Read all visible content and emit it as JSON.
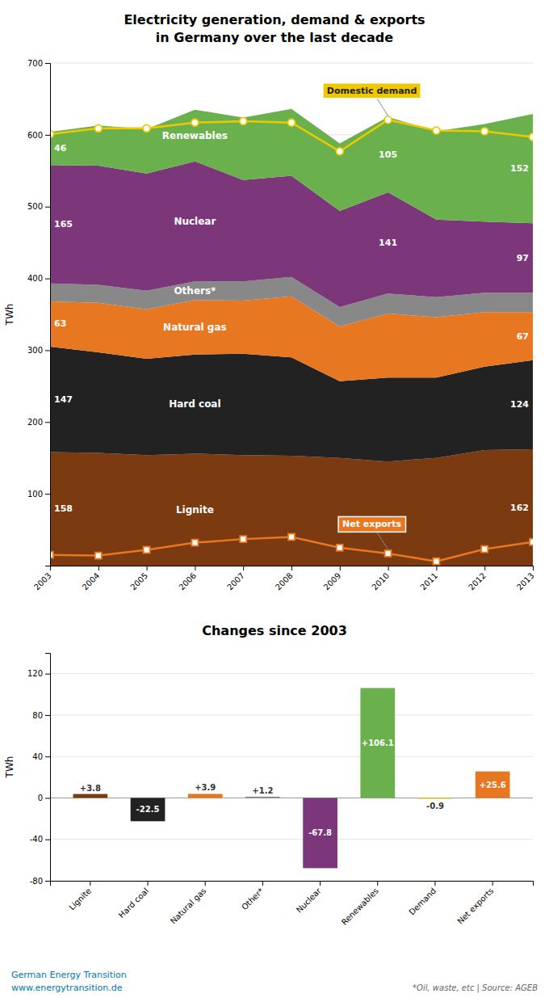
{
  "chart_data": [
    {
      "type": "area",
      "stacked": true,
      "title": "Electricity generation, demand & exports",
      "subtitle": "in Germany over the last decade",
      "y_label": "TWh",
      "x": [
        2003,
        2004,
        2005,
        2006,
        2007,
        2008,
        2009,
        2010,
        2011,
        2012,
        2013
      ],
      "xlim": [
        2003,
        2013
      ],
      "xticks": [
        2003,
        2004,
        2005,
        2006,
        2007,
        2008,
        2009,
        2010,
        2011,
        2012,
        2013
      ],
      "ylim": [
        0,
        700
      ],
      "yticks": [
        100,
        200,
        300,
        400,
        500,
        600,
        700
      ],
      "grid": true,
      "series": [
        {
          "name": "Lignite",
          "type": "area",
          "color": "#7B3A10",
          "values": [
            158,
            157,
            154,
            156,
            154,
            153,
            150,
            145,
            150,
            161,
            162
          ],
          "value_labels": [
            "158",
            null,
            null,
            null,
            null,
            null,
            null,
            null,
            null,
            null,
            "162"
          ]
        },
        {
          "name": "Hard coal",
          "type": "area",
          "color": "#222222",
          "values": [
            147,
            140,
            134,
            138,
            141,
            137,
            107,
            117,
            112,
            116,
            124
          ],
          "value_labels": [
            "147",
            null,
            null,
            null,
            null,
            null,
            null,
            null,
            null,
            null,
            "124"
          ]
        },
        {
          "name": "Natural gas",
          "type": "area",
          "color": "#E87722",
          "values": [
            63,
            69,
            69,
            76,
            74,
            85,
            76,
            89,
            84,
            76,
            67
          ],
          "value_labels": [
            "63",
            null,
            null,
            null,
            null,
            null,
            null,
            null,
            null,
            null,
            "67"
          ]
        },
        {
          "name": "Others*",
          "type": "area",
          "color": "#888888",
          "values": [
            25,
            25,
            26,
            26,
            27,
            27,
            27,
            28,
            28,
            27,
            27
          ]
        },
        {
          "name": "Nuclear",
          "type": "area",
          "color": "#7B3779",
          "values": [
            165,
            166,
            163,
            167,
            141,
            141,
            134,
            141,
            108,
            99,
            97
          ],
          "value_labels": [
            "165",
            null,
            null,
            null,
            null,
            null,
            null,
            "141",
            null,
            null,
            "97"
          ]
        },
        {
          "name": "Renewables",
          "type": "area",
          "color": "#6AB04C",
          "values": [
            46,
            56,
            62,
            72,
            87,
            93,
            94,
            105,
            123,
            136,
            152
          ],
          "value_labels": [
            "46",
            null,
            null,
            null,
            null,
            null,
            null,
            "105",
            null,
            null,
            "152"
          ]
        },
        {
          "name": "Domestic demand",
          "type": "line",
          "color": "#F0C800",
          "marker": "circle",
          "values": [
            601,
            609,
            609,
            617,
            619,
            617,
            577,
            621,
            606,
            605,
            597
          ]
        },
        {
          "name": "Net exports",
          "type": "line",
          "color": "#E87722",
          "marker": "square",
          "values": [
            15,
            14,
            22,
            32,
            37,
            40,
            25,
            17,
            6,
            23,
            33
          ]
        }
      ]
    },
    {
      "type": "bar",
      "title": "Changes since 2003",
      "y_label": "TWh",
      "categories": [
        "Lignite",
        "Hard coal",
        "Natural gas",
        "Other*",
        "Nuclear",
        "Renewables",
        "Demand",
        "Net exports"
      ],
      "values": [
        3.8,
        -22.5,
        3.9,
        1.2,
        -67.8,
        106.1,
        -0.9,
        25.6
      ],
      "value_labels": [
        "+3.8",
        "-22.5",
        "+3.9",
        "+1.2",
        "-67.8",
        "+106.1",
        "-0.9",
        "+25.6"
      ],
      "data_labels": true,
      "colors": [
        "#7B3A10",
        "#222222",
        "#E87722",
        "#888888",
        "#7B3779",
        "#6AB04C",
        "#F0C800",
        "#E87722"
      ],
      "ylim": [
        -80,
        140
      ],
      "yticks": [
        -80,
        -40,
        0,
        40,
        80,
        120
      ],
      "grid": true,
      "annotations": [
        "German Energy Transition",
        "www.energytransition.de",
        "*Oil, waste, etc | Source: AGEB"
      ]
    }
  ]
}
